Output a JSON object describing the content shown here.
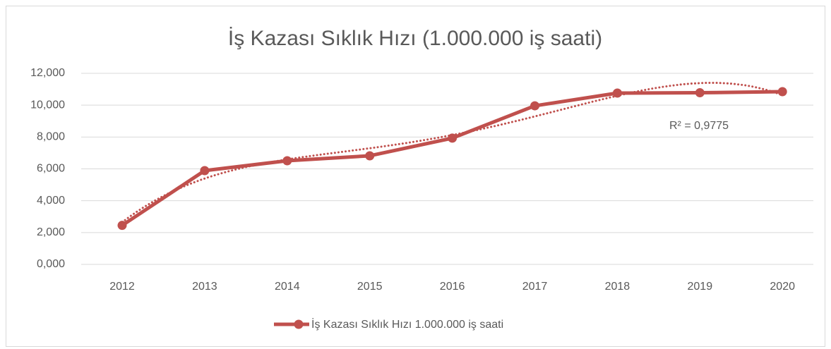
{
  "chart_data": {
    "type": "line",
    "title": "İş Kazası Sıklık Hızı (1.000.000 iş saati)",
    "categories": [
      "2012",
      "2013",
      "2014",
      "2015",
      "2016",
      "2017",
      "2018",
      "2019",
      "2020"
    ],
    "series": [
      {
        "name": "İş Kazası Sıklık Hızı 1.000.000 iş saati",
        "color": "#c0504d",
        "values": [
          2.45,
          5.89,
          6.51,
          6.82,
          7.93,
          9.96,
          10.76,
          10.78,
          10.85
        ]
      }
    ],
    "ylim": [
      0,
      12
    ],
    "yticks": [
      {
        "value": 0,
        "label": "0,000"
      },
      {
        "value": 2,
        "label": "2,000"
      },
      {
        "value": 4,
        "label": "4,000"
      },
      {
        "value": 6,
        "label": "6,000"
      },
      {
        "value": 8,
        "label": "8,000"
      },
      {
        "value": 10,
        "label": "10,000"
      },
      {
        "value": 12,
        "label": "12,000"
      }
    ],
    "grid": true,
    "trendline": {
      "kind": "polynomial",
      "order": 4,
      "annotation": "R² = 0,9775"
    },
    "legend": "bottom"
  }
}
